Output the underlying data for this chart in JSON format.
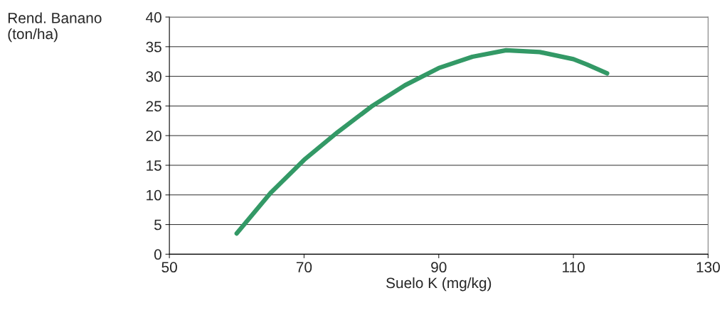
{
  "chart_data": {
    "type": "line",
    "xlabel": "Suelo K (mg/kg)",
    "ylabel": "Rend. Banano\n(ton/ha)",
    "x": [
      60,
      65,
      70,
      75,
      80,
      85,
      90,
      95,
      100,
      105,
      110,
      112,
      115
    ],
    "series": [
      {
        "color": "#339966",
        "values": [
          3.5,
          10.3,
          15.9,
          20.6,
          24.9,
          28.5,
          31.4,
          33.3,
          34.4,
          34.1,
          32.9,
          32.0,
          30.5
        ]
      }
    ],
    "xlim": [
      50,
      130
    ],
    "xticks": [
      50,
      70,
      90,
      110,
      130
    ],
    "ylim": [
      0,
      40
    ],
    "yticks": [
      0,
      5,
      10,
      15,
      20,
      25,
      30,
      35,
      40
    ],
    "grid": "y",
    "marker": "none",
    "line_style": "solid"
  }
}
